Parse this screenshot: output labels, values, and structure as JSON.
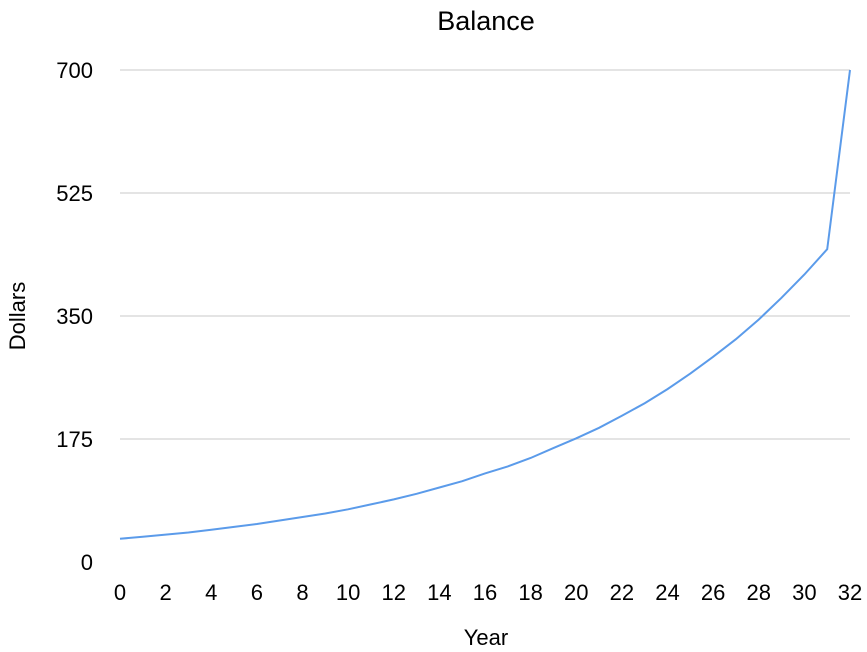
{
  "chart_data": {
    "type": "line",
    "title": "Balance",
    "xlabel": "Year",
    "ylabel": "Dollars",
    "xlim": [
      0,
      32
    ],
    "ylim": [
      0,
      700
    ],
    "xticks": [
      "0",
      "2",
      "4",
      "6",
      "8",
      "10",
      "12",
      "14",
      "16",
      "18",
      "20",
      "22",
      "24",
      "26",
      "28",
      "30",
      "32"
    ],
    "yticks": [
      "0",
      "175",
      "350",
      "525",
      "700"
    ],
    "grid": "horizontal",
    "series": [
      {
        "name": "Balance",
        "color": "#5b9bea",
        "x": [
          0,
          1,
          2,
          3,
          4,
          5,
          6,
          7,
          8,
          9,
          10,
          11,
          12,
          13,
          14,
          15,
          16,
          17,
          18,
          19,
          20,
          21,
          22,
          23,
          24,
          25,
          26,
          27,
          28,
          29,
          30,
          31,
          32
        ],
        "y": [
          33,
          36,
          39,
          42,
          46,
          50,
          54,
          59,
          64,
          69,
          75,
          82,
          89,
          97,
          106,
          115,
          126,
          136,
          148,
          162,
          176,
          191,
          208,
          226,
          246,
          268,
          292,
          317,
          345,
          376,
          409,
          445,
          700
        ]
      }
    ]
  }
}
